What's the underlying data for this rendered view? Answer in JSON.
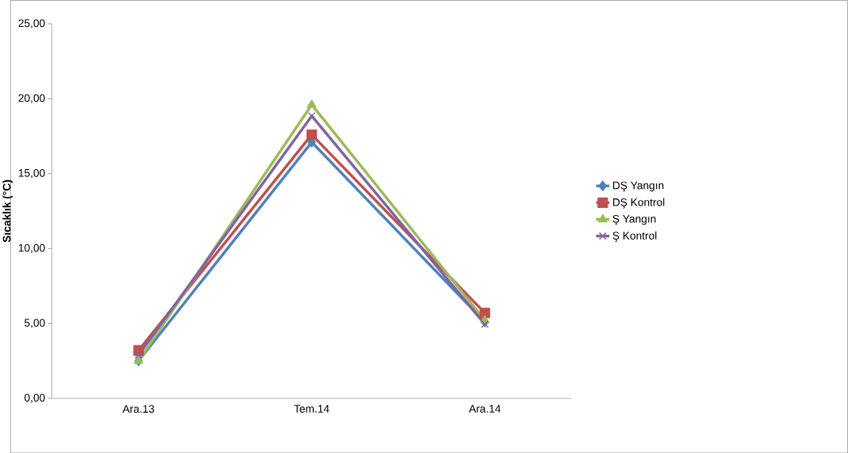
{
  "chart_data": {
    "type": "line",
    "ylabel": "Sıcaklık (°C)",
    "categories": [
      "Ara.13",
      "Tem.14",
      "Ara.14"
    ],
    "series": [
      {
        "name": "DŞ Yangın",
        "color": "#4f81bd",
        "marker": "diamond",
        "values": [
          2.5,
          17.1,
          5.1
        ]
      },
      {
        "name": "DŞ Kontrol",
        "color": "#c0504d",
        "marker": "square",
        "values": [
          3.2,
          17.6,
          5.7
        ]
      },
      {
        "name": "Ş Yangın",
        "color": "#9bbb59",
        "marker": "triangle",
        "values": [
          2.5,
          19.6,
          5.2
        ]
      },
      {
        "name": "Ş Kontrol",
        "color": "#8064a2",
        "marker": "cross",
        "values": [
          2.9,
          18.85,
          4.95
        ]
      }
    ],
    "ylim": [
      0,
      25
    ],
    "yticks": [
      {
        "value": 0,
        "label": "0,00"
      },
      {
        "value": 5,
        "label": "5,00"
      },
      {
        "value": 10,
        "label": "10,00"
      },
      {
        "value": 15,
        "label": "15,00"
      },
      {
        "value": 20,
        "label": "20,00"
      },
      {
        "value": 25,
        "label": "25,00"
      }
    ],
    "grid": false,
    "legend": "right"
  }
}
